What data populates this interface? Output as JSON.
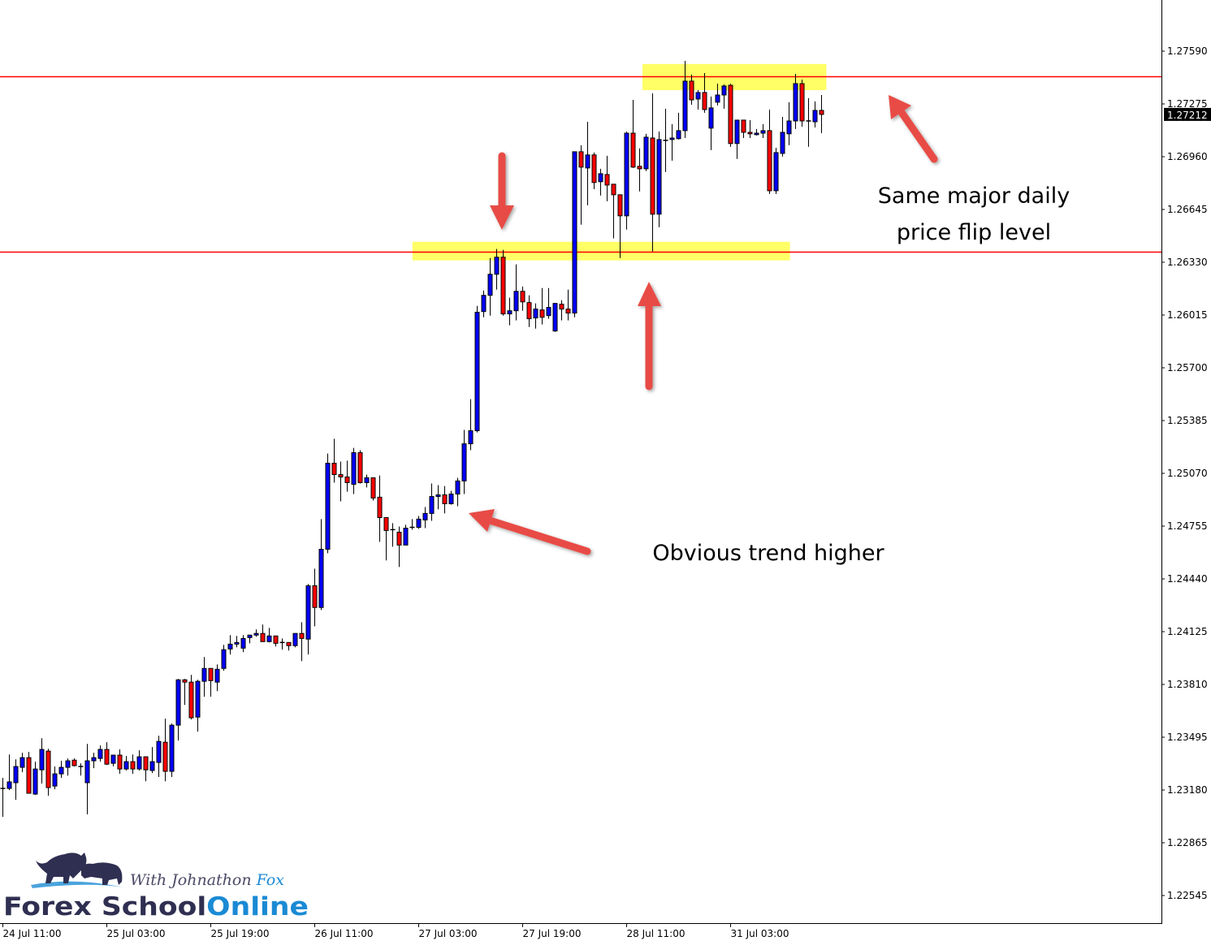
{
  "chart_data": {
    "type": "candlestick",
    "timeframe_hours": 1,
    "ylim": [
      1.22545,
      1.2759
    ],
    "grid": false,
    "y_ticks": [
      "1.27590",
      "1.27275",
      "1.26960",
      "1.26645",
      "1.26330",
      "1.26015",
      "1.25700",
      "1.25385",
      "1.25070",
      "1.24755",
      "1.24440",
      "1.24125",
      "1.23810",
      "1.23495",
      "1.23180",
      "1.22865",
      "1.22545"
    ],
    "x_ticks": [
      {
        "index": 0,
        "label": "24 Jul 11:00"
      },
      {
        "index": 16,
        "label": "25 Jul 03:00"
      },
      {
        "index": 32,
        "label": "25 Jul 19:00"
      },
      {
        "index": 48,
        "label": "26 Jul 11:00"
      },
      {
        "index": 64,
        "label": "27 Jul 03:00"
      },
      {
        "index": 80,
        "label": "27 Jul 19:00"
      },
      {
        "index": 96,
        "label": "28 Jul 11:00"
      },
      {
        "index": 112,
        "label": "31 Jul 03:00"
      }
    ],
    "current_price": "1.27212",
    "colors": {
      "bull": "#0000ff",
      "bear": "#ff0000",
      "outline": "#000000",
      "level_line": "#ff0000",
      "zone": "#ffff66",
      "arrow": "#e84c45"
    },
    "levels": [
      1.2744,
      1.26393
    ],
    "zones": [
      {
        "from_index": 98.5,
        "to_index": 126.8,
        "high": 1.27513,
        "low": 1.27357
      },
      {
        "from_index": 63.1,
        "to_index": 121.2,
        "high": 1.26451,
        "low": 1.2634
      }
    ],
    "candles_ohlc": [
      [
        1.23185,
        1.23248,
        1.23015,
        1.23185
      ],
      [
        1.23185,
        1.23388,
        1.23175,
        1.23224
      ],
      [
        1.23219,
        1.23359,
        1.23117,
        1.23316
      ],
      [
        1.23311,
        1.23398,
        1.23282,
        1.23369
      ],
      [
        1.23369,
        1.23403,
        1.23156,
        1.23156
      ],
      [
        1.23151,
        1.23345,
        1.23146,
        1.23301
      ],
      [
        1.23296,
        1.23485,
        1.23214,
        1.23418
      ],
      [
        1.23408,
        1.23422,
        1.23141,
        1.2319
      ],
      [
        1.23199,
        1.23316,
        1.2318,
        1.23272
      ],
      [
        1.23272,
        1.2335,
        1.23248,
        1.23311
      ],
      [
        1.23311,
        1.23364,
        1.23262,
        1.2335
      ],
      [
        1.23354,
        1.23364,
        1.23316,
        1.23321
      ],
      [
        1.23316,
        1.23335,
        1.23262,
        1.23316
      ],
      [
        1.23219,
        1.23451,
        1.2303,
        1.2335
      ],
      [
        1.2335,
        1.23398,
        1.23306,
        1.23369
      ],
      [
        1.23364,
        1.23442,
        1.23345,
        1.23418
      ],
      [
        1.23418,
        1.23461,
        1.23325,
        1.2333
      ],
      [
        1.23335,
        1.23384,
        1.23316,
        1.23384
      ],
      [
        1.23384,
        1.23418,
        1.23272,
        1.23301
      ],
      [
        1.23301,
        1.23379,
        1.23292,
        1.23345
      ],
      [
        1.23345,
        1.23388,
        1.23272,
        1.23301
      ],
      [
        1.23301,
        1.23413,
        1.23292,
        1.23374
      ],
      [
        1.23374,
        1.23374,
        1.23228,
        1.23296
      ],
      [
        1.23292,
        1.23432,
        1.23277,
        1.23345
      ],
      [
        1.2334,
        1.235,
        1.23253,
        1.23466
      ],
      [
        1.23461,
        1.23602,
        1.23228,
        1.23287
      ],
      [
        1.23287,
        1.23573,
        1.23253,
        1.23563
      ],
      [
        1.23563,
        1.23839,
        1.23471,
        1.23834
      ],
      [
        1.23834,
        1.23839,
        1.23684,
        1.2382
      ],
      [
        1.2382,
        1.23863,
        1.23597,
        1.23607
      ],
      [
        1.23611,
        1.23834,
        1.23524,
        1.23825
      ],
      [
        1.23825,
        1.2397,
        1.23733,
        1.23902
      ],
      [
        1.23902,
        1.23902,
        1.23733,
        1.23829
      ],
      [
        1.2382,
        1.23926,
        1.23766,
        1.23897
      ],
      [
        1.23902,
        1.24043,
        1.23888,
        1.24014
      ],
      [
        1.24018,
        1.24101,
        1.23985,
        1.24047
      ],
      [
        1.24047,
        1.24096,
        1.24028,
        1.24057
      ],
      [
        1.24023,
        1.24101,
        1.23999,
        1.24081
      ],
      [
        1.24086,
        1.24101,
        1.24052,
        1.24101
      ],
      [
        1.24101,
        1.24135,
        1.24091,
        1.24111
      ],
      [
        1.24111,
        1.24164,
        1.24062,
        1.24062
      ],
      [
        1.24062,
        1.24144,
        1.24057,
        1.24096
      ],
      [
        1.24096,
        1.24096,
        1.24033,
        1.24052
      ],
      [
        1.24057,
        1.24081,
        1.24014,
        1.24057
      ],
      [
        1.24057,
        1.24057,
        1.24009,
        1.24038
      ],
      [
        1.24038,
        1.24111,
        1.24028,
        1.24111
      ],
      [
        1.24111,
        1.24178,
        1.23946,
        1.24081
      ],
      [
        1.24077,
        1.24406,
        1.23985,
        1.24396
      ],
      [
        1.24396,
        1.24498,
        1.24154,
        1.24266
      ],
      [
        1.24266,
        1.24794,
        1.24251,
        1.24614
      ],
      [
        1.24614,
        1.25186,
        1.2459,
        1.25128
      ],
      [
        1.25128,
        1.25274,
        1.25012,
        1.2506
      ],
      [
        1.2506,
        1.25138,
        1.249,
        1.25046
      ],
      [
        1.25046,
        1.25143,
        1.24958,
        1.25012
      ],
      [
        1.25002,
        1.2522,
        1.24944,
        1.25191
      ],
      [
        1.25191,
        1.25206,
        1.25007,
        1.25012
      ],
      [
        1.25012,
        1.2506,
        1.24983,
        1.25041
      ],
      [
        1.25041,
        1.25041,
        1.24905,
        1.2492
      ],
      [
        1.24925,
        1.25055,
        1.24658,
        1.24803
      ],
      [
        1.24803,
        1.24803,
        1.24547,
        1.24726
      ],
      [
        1.24731,
        1.2477,
        1.24629,
        1.24731
      ],
      [
        1.24716,
        1.2475,
        1.24508,
        1.24639
      ],
      [
        1.24639,
        1.2476,
        1.24639,
        1.2474
      ],
      [
        1.24745,
        1.24794,
        1.24731,
        1.24745
      ],
      [
        1.24745,
        1.24813,
        1.24736,
        1.24794
      ],
      [
        1.24789,
        1.24866,
        1.2474,
        1.24828
      ],
      [
        1.24828,
        1.25007,
        1.24784,
        1.24929
      ],
      [
        1.24929,
        1.24997,
        1.24852,
        1.24939
      ],
      [
        1.24939,
        1.24992,
        1.24828,
        1.24886
      ],
      [
        1.24886,
        1.24963,
        1.24881,
        1.24944
      ],
      [
        1.24944,
        1.25041,
        1.24871,
        1.25022
      ],
      [
        1.25022,
        1.25327,
        1.24944,
        1.25244
      ],
      [
        1.25244,
        1.25511,
        1.25206,
        1.25322
      ],
      [
        1.25322,
        1.26068,
        1.25312,
        1.2603
      ],
      [
        1.26034,
        1.2616,
        1.26,
        1.26131
      ],
      [
        1.26131,
        1.26354,
        1.2601,
        1.26257
      ],
      [
        1.26257,
        1.26408,
        1.26165,
        1.26359
      ],
      [
        1.26359,
        1.26403,
        1.2601,
        1.2602
      ],
      [
        1.2602,
        1.26117,
        1.25952,
        1.26039
      ],
      [
        1.26039,
        1.26316,
        1.25981,
        1.26155
      ],
      [
        1.26155,
        1.26184,
        1.26039,
        1.26092
      ],
      [
        1.26088,
        1.26131,
        1.25942,
        1.25991
      ],
      [
        1.25996,
        1.26083,
        1.25932,
        1.26049
      ],
      [
        1.26044,
        1.26175,
        1.25957,
        1.26
      ],
      [
        1.2601,
        1.26175,
        1.25991,
        1.26059
      ],
      [
        1.25918,
        1.26083,
        1.25913,
        1.26083
      ],
      [
        1.26078,
        1.26102,
        1.25981,
        1.26049
      ],
      [
        1.26049,
        1.26165,
        1.25981,
        1.26025
      ],
      [
        1.26025,
        1.26989,
        1.26,
        1.26989
      ],
      [
        1.26989,
        1.27028,
        1.26553,
        1.26897
      ],
      [
        1.26892,
        1.27168,
        1.26669,
        1.2697
      ],
      [
        1.2697,
        1.26984,
        1.26766,
        1.26805
      ],
      [
        1.2681,
        1.26887,
        1.26727,
        1.26858
      ],
      [
        1.26853,
        1.26965,
        1.26693,
        1.2679
      ],
      [
        1.26795,
        1.26795,
        1.26471,
        1.26732
      ],
      [
        1.26732,
        1.26732,
        1.26354,
        1.26606
      ],
      [
        1.26606,
        1.2711,
        1.26524,
        1.271
      ],
      [
        1.271,
        1.27299,
        1.26892,
        1.26897
      ],
      [
        1.26902,
        1.27009,
        1.26752,
        1.26887
      ],
      [
        1.26887,
        1.27096,
        1.26873,
        1.27076
      ],
      [
        1.27071,
        1.27338,
        1.26393,
        1.26616
      ],
      [
        1.26616,
        1.2711,
        1.26538,
        1.27062
      ],
      [
        1.27057,
        1.27246,
        1.26868,
        1.27057
      ],
      [
        1.27062,
        1.27154,
        1.26936,
        1.27071
      ],
      [
        1.27067,
        1.27222,
        1.27062,
        1.27115
      ],
      [
        1.27115,
        1.27532,
        1.27071,
        1.27411
      ],
      [
        1.27411,
        1.2745,
        1.2727,
        1.27299
      ],
      [
        1.27304,
        1.27357,
        1.27241,
        1.27343
      ],
      [
        1.27343,
        1.27459,
        1.27222,
        1.27241
      ],
      [
        1.2713,
        1.27319,
        1.26999,
        1.27251
      ],
      [
        1.27285,
        1.27396,
        1.27265,
        1.27328
      ],
      [
        1.27328,
        1.27391,
        1.27246,
        1.27382
      ],
      [
        1.27386,
        1.27396,
        1.27018,
        1.27038
      ],
      [
        1.27038,
        1.27178,
        1.26946,
        1.27178
      ],
      [
        1.27178,
        1.27178,
        1.27071,
        1.27105
      ],
      [
        1.27105,
        1.27178,
        1.27071,
        1.27096
      ],
      [
        1.27091,
        1.27125,
        1.27086,
        1.271
      ],
      [
        1.271,
        1.27154,
        1.27071,
        1.27115
      ],
      [
        1.27115,
        1.27241,
        1.26737,
        1.26756
      ],
      [
        1.26756,
        1.27013,
        1.26737,
        1.26984
      ],
      [
        1.26979,
        1.27197,
        1.2696,
        1.27105
      ],
      [
        1.27096,
        1.27285,
        1.27028,
        1.27173
      ],
      [
        1.27173,
        1.27454,
        1.27125,
        1.27396
      ],
      [
        1.27396,
        1.2742,
        1.27139,
        1.27173
      ],
      [
        1.27173,
        1.27309,
        1.27018,
        1.27173
      ],
      [
        1.27168,
        1.2729,
        1.27134,
        1.27236
      ],
      [
        1.27236,
        1.27328,
        1.271,
        1.27212
      ]
    ],
    "annotations": {
      "level_note_line1": "Same major daily",
      "level_note_line2": "price flip level",
      "trend_note": "Obvious trend higher"
    }
  },
  "logo": {
    "tagline_a": "With Johnathon ",
    "tagline_b": "Fox",
    "name_a": "Forex School",
    "name_b": "Online",
    "colors": {
      "dark": "#2f2f52",
      "blue": "#1a8ad4"
    }
  }
}
